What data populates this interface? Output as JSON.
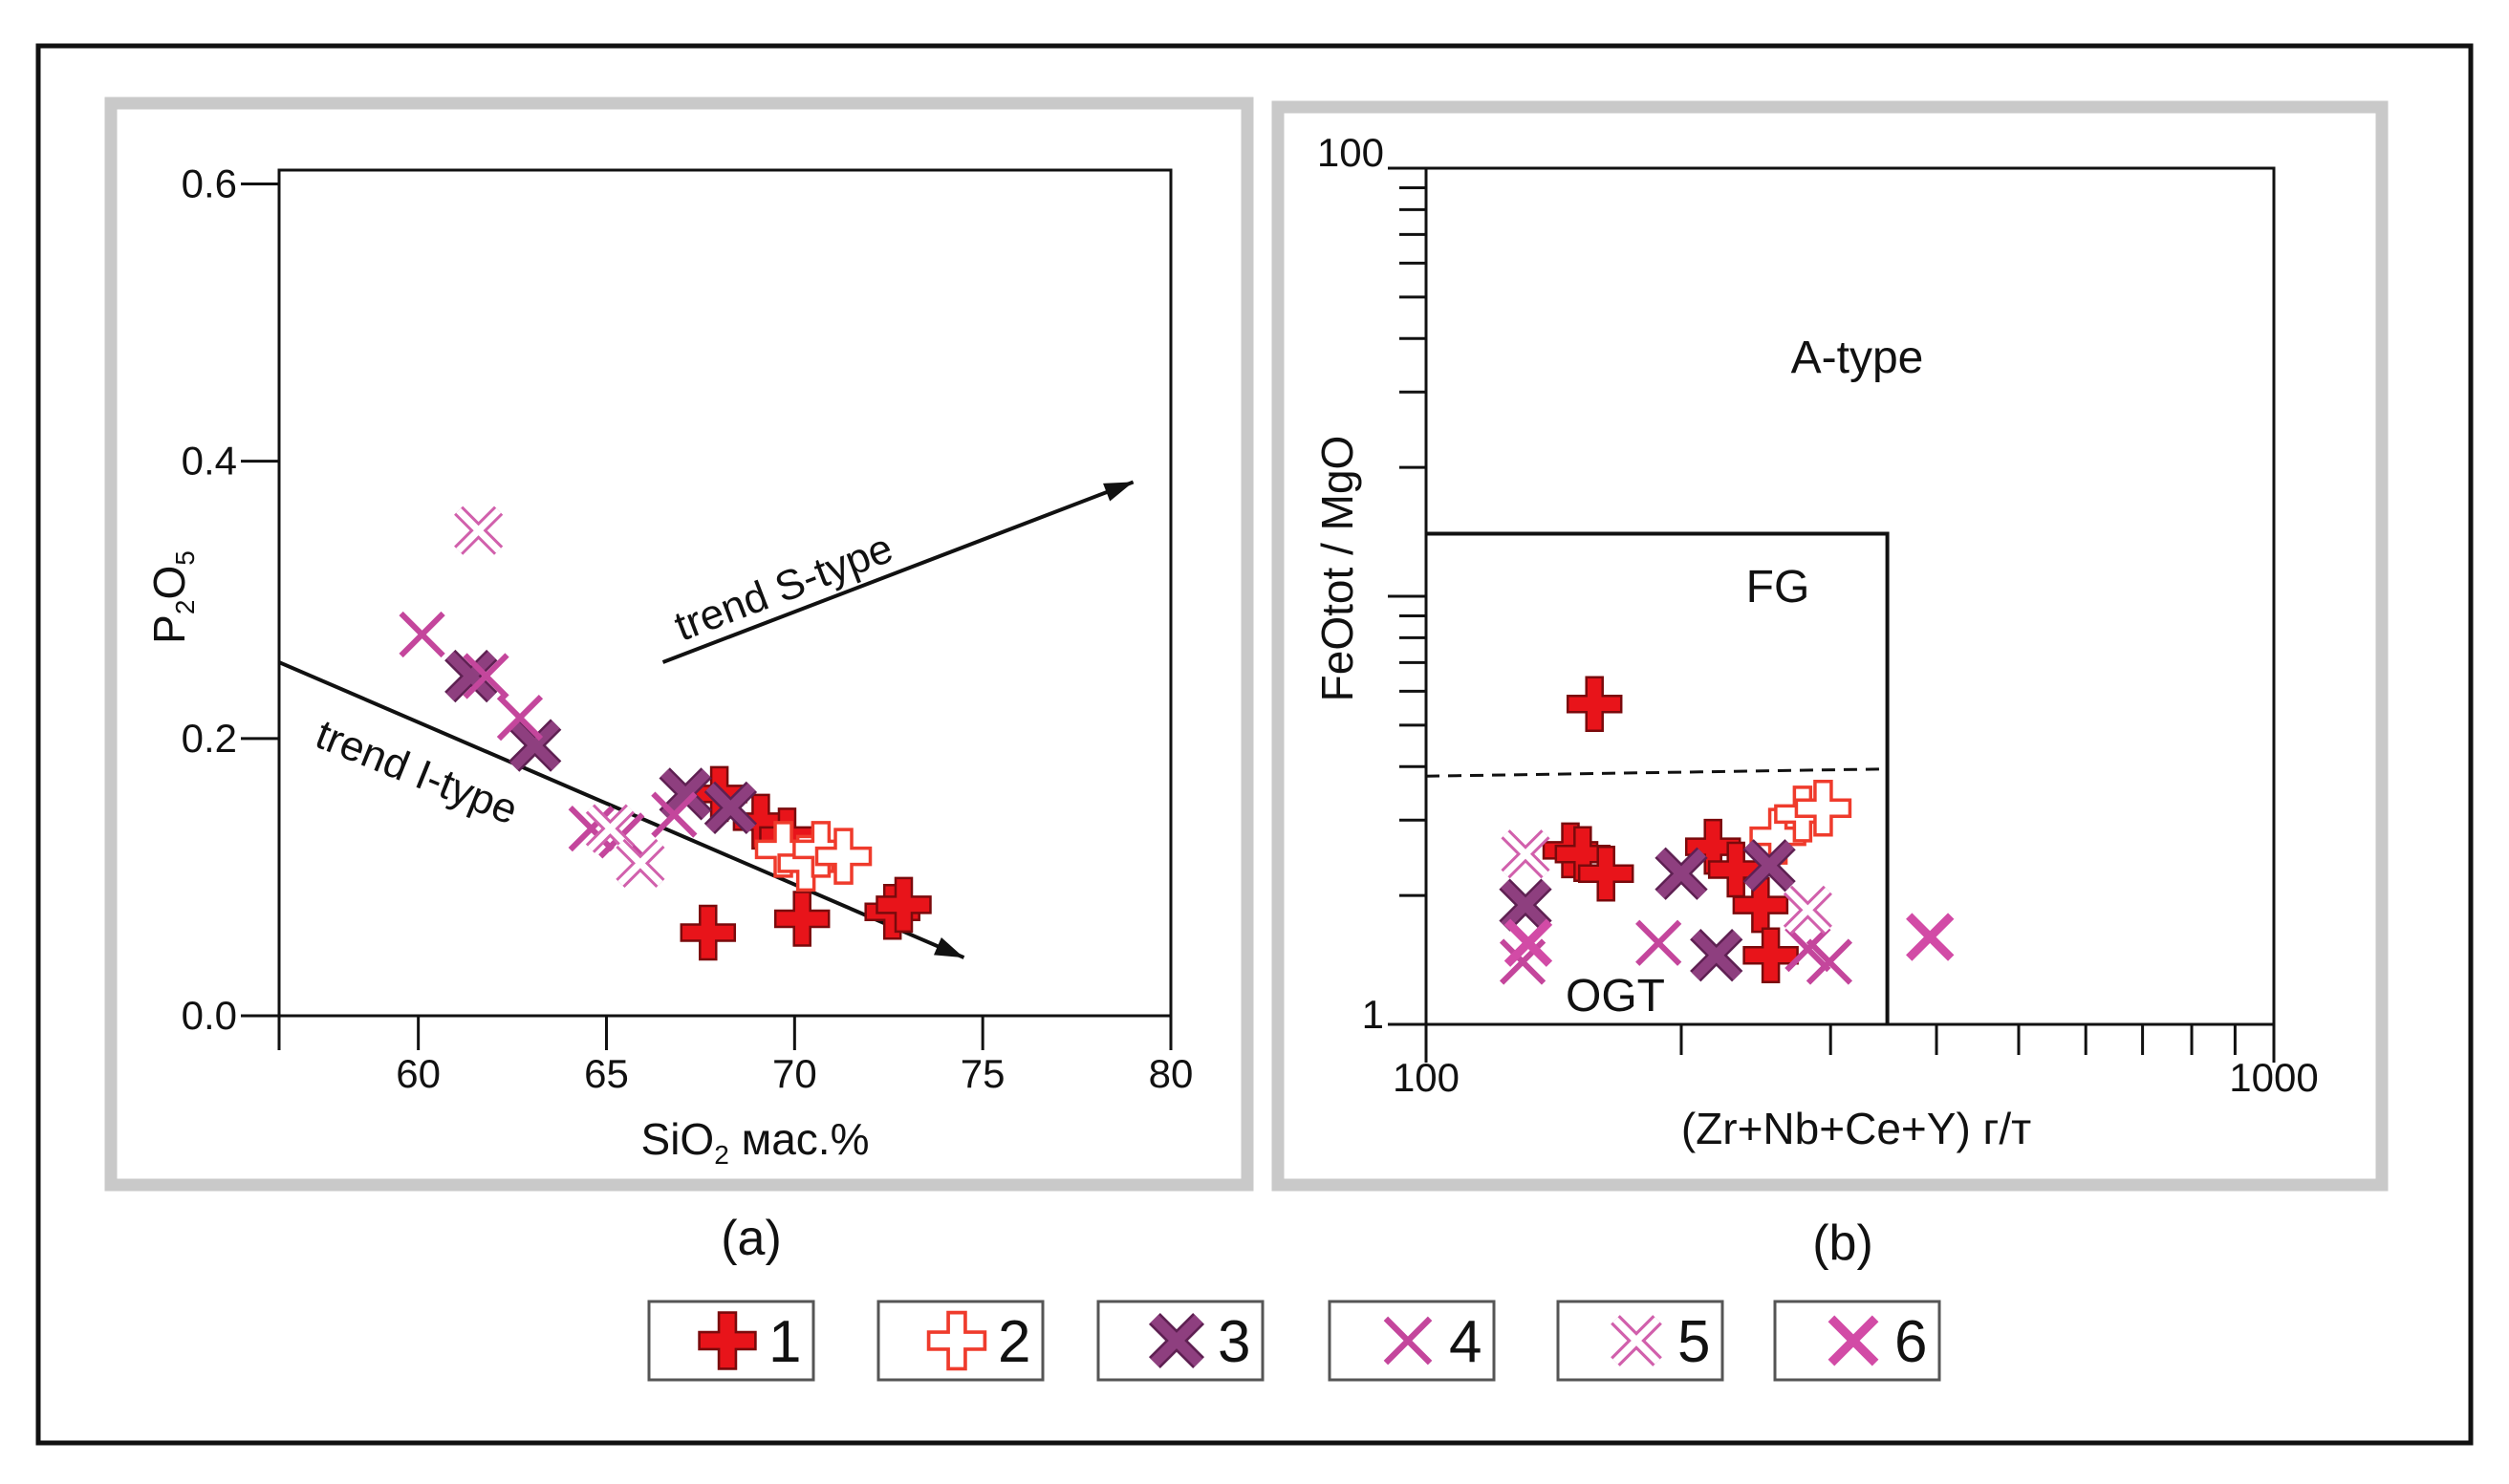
{
  "figure": {
    "type": "scatter",
    "panel_frame_color": "#c9c9c9"
  },
  "legend": [
    {
      "id": "1",
      "label": "1",
      "marker": "plus-filled",
      "fill": "#e8141a",
      "stroke": "#7a0a0c"
    },
    {
      "id": "2",
      "label": "2",
      "marker": "plus-open",
      "fill": "#ffffff",
      "stroke": "#ef3b2c"
    },
    {
      "id": "3",
      "label": "3",
      "marker": "cross-filled",
      "fill": "#8e3f7f",
      "stroke": "#5e2052"
    },
    {
      "id": "4",
      "label": "4",
      "marker": "cross-thin",
      "fill": "#c4469c",
      "stroke": "#c4469c"
    },
    {
      "id": "5",
      "label": "5",
      "marker": "cross-open",
      "fill": "#ffffff",
      "stroke": "#d160ac"
    },
    {
      "id": "6",
      "label": "6",
      "marker": "cross-bold",
      "fill": "#d24ba6",
      "stroke": "#d24ba6"
    }
  ],
  "chart_data": [
    {
      "type": "scatter",
      "panel_label": "(a)",
      "xlabel_main": "SiO",
      "xlabel_sub": "2",
      "xlabel_rest": " мас.%",
      "ylabel_main": "P",
      "ylabel_sub1": "2",
      "ylabel_mid": "O",
      "ylabel_sub2": "5",
      "xlim": [
        56.3,
        80
      ],
      "ylim": [
        0,
        0.61
      ],
      "xticks": [
        60,
        65,
        70,
        75,
        80
      ],
      "xtick_labels": [
        "60",
        "65",
        "70",
        "75",
        "80"
      ],
      "yticks": [
        0.0,
        0.2,
        0.4,
        0.6
      ],
      "ytick_labels": [
        "0.0",
        "0.2",
        "0.4",
        "0.6"
      ],
      "trends": [
        {
          "label": "trend S-type",
          "from": [
            66.5,
            0.255
          ],
          "to": [
            79,
            0.385
          ],
          "label_at": [
            67,
            0.27
          ],
          "angle": -21
        },
        {
          "label": "trend I-type",
          "from": [
            56.3,
            0.255
          ],
          "to": [
            74.5,
            0.042
          ],
          "label_at": [
            57.2,
            0.195
          ],
          "angle": 22
        }
      ],
      "series": [
        {
          "name": "1",
          "points": [
            [
              67.7,
              0.06
            ],
            [
              68,
              0.16
            ],
            [
              69.1,
              0.14
            ],
            [
              69.8,
              0.13
            ],
            [
              70.2,
              0.07
            ],
            [
              72.6,
              0.075
            ],
            [
              72.9,
              0.08
            ]
          ]
        },
        {
          "name": "2",
          "points": [
            [
              69.7,
              0.12
            ],
            [
              70.3,
              0.11
            ],
            [
              70.7,
              0.12
            ],
            [
              71.3,
              0.115
            ]
          ]
        },
        {
          "name": "3",
          "points": [
            [
              61.4,
              0.245
            ],
            [
              63.1,
              0.195
            ],
            [
              67.1,
              0.16
            ],
            [
              68.3,
              0.15
            ]
          ]
        },
        {
          "name": "4",
          "points": [
            [
              60.1,
              0.275
            ],
            [
              61.8,
              0.245
            ],
            [
              62.7,
              0.215
            ],
            [
              64.6,
              0.135
            ],
            [
              65.4,
              0.13
            ],
            [
              66.8,
              0.145
            ]
          ]
        },
        {
          "name": "5",
          "points": [
            [
              61.6,
              0.35
            ],
            [
              65.1,
              0.135
            ],
            [
              65.9,
              0.11
            ]
          ]
        },
        {
          "name": "6",
          "points": []
        }
      ]
    },
    {
      "type": "scatter",
      "panel_label": "(b)",
      "xlabel": "(Zr+Nb+Ce+Y) г/т",
      "ylabel": "FeOtot / MgO",
      "xscale": "log",
      "yscale": "log",
      "xlim": [
        100,
        1000
      ],
      "ylim": [
        1,
        100
      ],
      "xtick_labels": [
        "100",
        "1000"
      ],
      "ytick_labels": [
        "1",
        "100"
      ],
      "regions": [
        "A-type",
        "FG",
        "OGT"
      ],
      "fg_box": {
        "x_max": 350,
        "y_max": 14
      },
      "fg_ogt_dashed": [
        [
          100,
          3.8
        ],
        [
          350,
          3.95
        ]
      ],
      "series": [
        {
          "name": "1",
          "points": [
            [
              148,
              2.55
            ],
            [
              153,
              2.5
            ],
            [
              158,
              5.6
            ],
            [
              163,
              2.25
            ],
            [
              218,
              2.6
            ],
            [
              232,
              2.3
            ],
            [
              248,
              1.9
            ],
            [
              255,
              1.45
            ]
          ]
        },
        {
          "name": "2",
          "points": [
            [
              260,
              2.75
            ],
            [
              278,
              3.1
            ],
            [
              294,
              3.2
            ]
          ]
        },
        {
          "name": "3",
          "points": [
            [
              131,
              1.9
            ],
            [
              200,
              2.25
            ],
            [
              220,
              1.45
            ],
            [
              254,
              2.35
            ]
          ]
        },
        {
          "name": "4",
          "points": [
            [
              130,
              1.4
            ],
            [
              188,
              1.55
            ],
            [
              282,
              1.5
            ],
            [
              299,
              1.4
            ]
          ]
        },
        {
          "name": "5",
          "points": [
            [
              131,
              2.5
            ],
            [
              282,
              1.85
            ]
          ]
        },
        {
          "name": "6",
          "points": [
            [
              132,
              1.55
            ],
            [
              393,
              1.6
            ]
          ]
        }
      ]
    }
  ]
}
